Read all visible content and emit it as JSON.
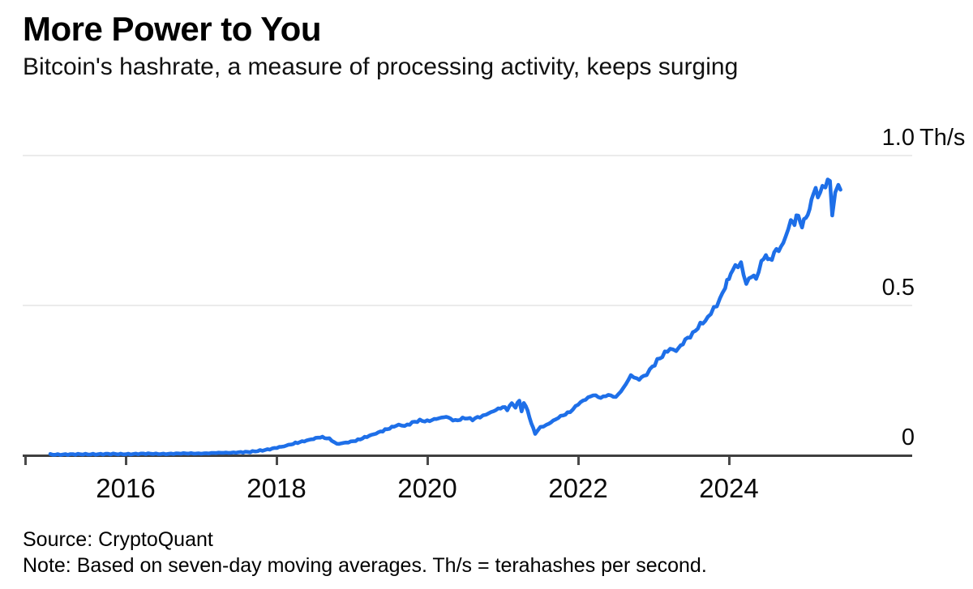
{
  "header": {
    "title": "More Power to You",
    "subtitle": "Bitcoin's hashrate, a measure of processing activity, keeps surging"
  },
  "footer": {
    "source": "Source: CryptoQuant",
    "note": "Note: Based on seven-day moving averages. Th/s = terahashes per second."
  },
  "colors": {
    "line": "#1e6fe8",
    "grid": "#ebebeb",
    "axis": "#3f3f3f",
    "text": "#000000"
  },
  "chart_data": {
    "type": "line",
    "title": "More Power to You",
    "subtitle": "Bitcoin's hashrate, a measure of processing activity, keeps surging",
    "xlabel": "",
    "ylabel": "Th/s",
    "x_range": [
      2015.0,
      2025.55
    ],
    "y_range": [
      0,
      1.0
    ],
    "grid": "horizontal",
    "legend_position": "none",
    "x_ticks": [
      {
        "label": "",
        "year": 2014.67
      },
      {
        "label": "2016",
        "year": 2016
      },
      {
        "label": "2018",
        "year": 2018
      },
      {
        "label": "2020",
        "year": 2020
      },
      {
        "label": "2022",
        "year": 2022
      },
      {
        "label": "2024",
        "year": 2024
      }
    ],
    "y_ticks": [
      {
        "label": "1.0",
        "value": 1.0,
        "unit": "Th/s"
      },
      {
        "label": "0.5",
        "value": 0.5,
        "unit": ""
      },
      {
        "label": "0",
        "value": 0,
        "unit": ""
      }
    ],
    "series": [
      {
        "name": "Bitcoin hashrate, seven-day moving average",
        "unit": "Th/s",
        "color": "#1e6fe8",
        "points": [
          [
            2015.0,
            0.003
          ],
          [
            2015.3,
            0.003
          ],
          [
            2015.6,
            0.004
          ],
          [
            2015.9,
            0.004
          ],
          [
            2016.2,
            0.005
          ],
          [
            2016.5,
            0.005
          ],
          [
            2016.8,
            0.006
          ],
          [
            2017.1,
            0.007
          ],
          [
            2017.4,
            0.009
          ],
          [
            2017.65,
            0.012
          ],
          [
            2017.88,
            0.019
          ],
          [
            2018.1,
            0.03
          ],
          [
            2018.25,
            0.041
          ],
          [
            2018.4,
            0.05
          ],
          [
            2018.58,
            0.061
          ],
          [
            2018.7,
            0.055
          ],
          [
            2018.8,
            0.038
          ],
          [
            2018.92,
            0.042
          ],
          [
            2019.05,
            0.049
          ],
          [
            2019.2,
            0.062
          ],
          [
            2019.35,
            0.075
          ],
          [
            2019.5,
            0.09
          ],
          [
            2019.62,
            0.103
          ],
          [
            2019.7,
            0.097
          ],
          [
            2019.8,
            0.11
          ],
          [
            2019.9,
            0.117
          ],
          [
            2020.0,
            0.113
          ],
          [
            2020.12,
            0.122
          ],
          [
            2020.25,
            0.128
          ],
          [
            2020.37,
            0.115
          ],
          [
            2020.5,
            0.124
          ],
          [
            2020.6,
            0.119
          ],
          [
            2020.7,
            0.13
          ],
          [
            2020.78,
            0.135
          ],
          [
            2020.88,
            0.147
          ],
          [
            2021.0,
            0.16
          ],
          [
            2021.06,
            0.153
          ],
          [
            2021.12,
            0.172
          ],
          [
            2021.17,
            0.163
          ],
          [
            2021.22,
            0.181
          ],
          [
            2021.25,
            0.147
          ],
          [
            2021.28,
            0.172
          ],
          [
            2021.33,
            0.152
          ],
          [
            2021.38,
            0.105
          ],
          [
            2021.43,
            0.073
          ],
          [
            2021.5,
            0.092
          ],
          [
            2021.58,
            0.102
          ],
          [
            2021.67,
            0.116
          ],
          [
            2021.77,
            0.131
          ],
          [
            2021.86,
            0.141
          ],
          [
            2021.93,
            0.152
          ],
          [
            2022.0,
            0.17
          ],
          [
            2022.1,
            0.188
          ],
          [
            2022.2,
            0.203
          ],
          [
            2022.3,
            0.192
          ],
          [
            2022.4,
            0.2
          ],
          [
            2022.5,
            0.193
          ],
          [
            2022.6,
            0.225
          ],
          [
            2022.7,
            0.268
          ],
          [
            2022.78,
            0.251
          ],
          [
            2022.87,
            0.262
          ],
          [
            2022.95,
            0.285
          ],
          [
            2023.05,
            0.315
          ],
          [
            2023.15,
            0.338
          ],
          [
            2023.22,
            0.358
          ],
          [
            2023.3,
            0.346
          ],
          [
            2023.42,
            0.384
          ],
          [
            2023.52,
            0.403
          ],
          [
            2023.62,
            0.435
          ],
          [
            2023.72,
            0.458
          ],
          [
            2023.8,
            0.49
          ],
          [
            2023.88,
            0.52
          ],
          [
            2023.95,
            0.565
          ],
          [
            2024.0,
            0.592
          ],
          [
            2024.05,
            0.619
          ],
          [
            2024.12,
            0.63
          ],
          [
            2024.16,
            0.645
          ],
          [
            2024.23,
            0.57
          ],
          [
            2024.3,
            0.6
          ],
          [
            2024.36,
            0.585
          ],
          [
            2024.43,
            0.64
          ],
          [
            2024.49,
            0.667
          ],
          [
            2024.54,
            0.645
          ],
          [
            2024.6,
            0.68
          ],
          [
            2024.66,
            0.69
          ],
          [
            2024.72,
            0.71
          ],
          [
            2024.82,
            0.784
          ],
          [
            2024.87,
            0.78
          ],
          [
            2024.92,
            0.795
          ],
          [
            2024.97,
            0.77
          ],
          [
            2025.02,
            0.789
          ],
          [
            2025.07,
            0.822
          ],
          [
            2025.12,
            0.876
          ],
          [
            2025.15,
            0.897
          ],
          [
            2025.18,
            0.857
          ],
          [
            2025.21,
            0.87
          ],
          [
            2025.24,
            0.911
          ],
          [
            2025.28,
            0.892
          ],
          [
            2025.31,
            0.924
          ],
          [
            2025.34,
            0.93
          ],
          [
            2025.37,
            0.789
          ],
          [
            2025.41,
            0.884
          ],
          [
            2025.45,
            0.897
          ],
          [
            2025.48,
            0.878
          ]
        ]
      }
    ]
  }
}
